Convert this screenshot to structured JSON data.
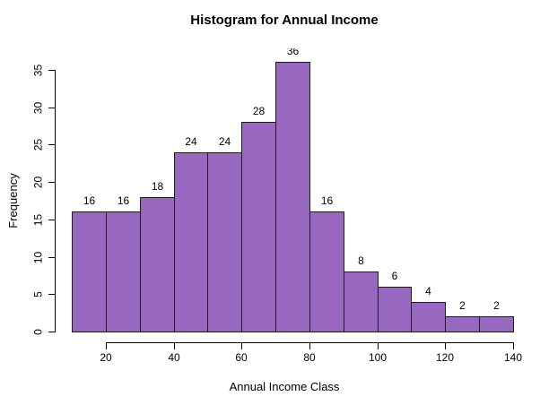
{
  "chart_data": {
    "type": "bar",
    "subtype": "histogram",
    "title": "Histogram for Annual Income",
    "xlabel": "Annual Income Class",
    "ylabel": "Frequency",
    "bin_edges": [
      10,
      20,
      30,
      40,
      50,
      60,
      70,
      80,
      90,
      100,
      110,
      120,
      130,
      140
    ],
    "frequencies": [
      16,
      16,
      18,
      24,
      24,
      28,
      36,
      16,
      8,
      6,
      4,
      2,
      2
    ],
    "bar_labels": [
      "16",
      "16",
      "18",
      "24",
      "24",
      "28",
      "36",
      "16",
      "8",
      "6",
      "4",
      "2",
      "2"
    ],
    "x_ticks": [
      20,
      40,
      60,
      80,
      100,
      120,
      140
    ],
    "y_ticks": [
      0,
      5,
      10,
      15,
      20,
      25,
      30,
      35
    ],
    "xlim": [
      10,
      140
    ],
    "ylim": [
      0,
      35
    ],
    "grid": false,
    "legend": null,
    "colors": {
      "bar_fill": "#9868c0",
      "bar_border": "#1d1d1d",
      "axis": "#000000",
      "text": "#000000",
      "background": "#ffffff"
    }
  }
}
